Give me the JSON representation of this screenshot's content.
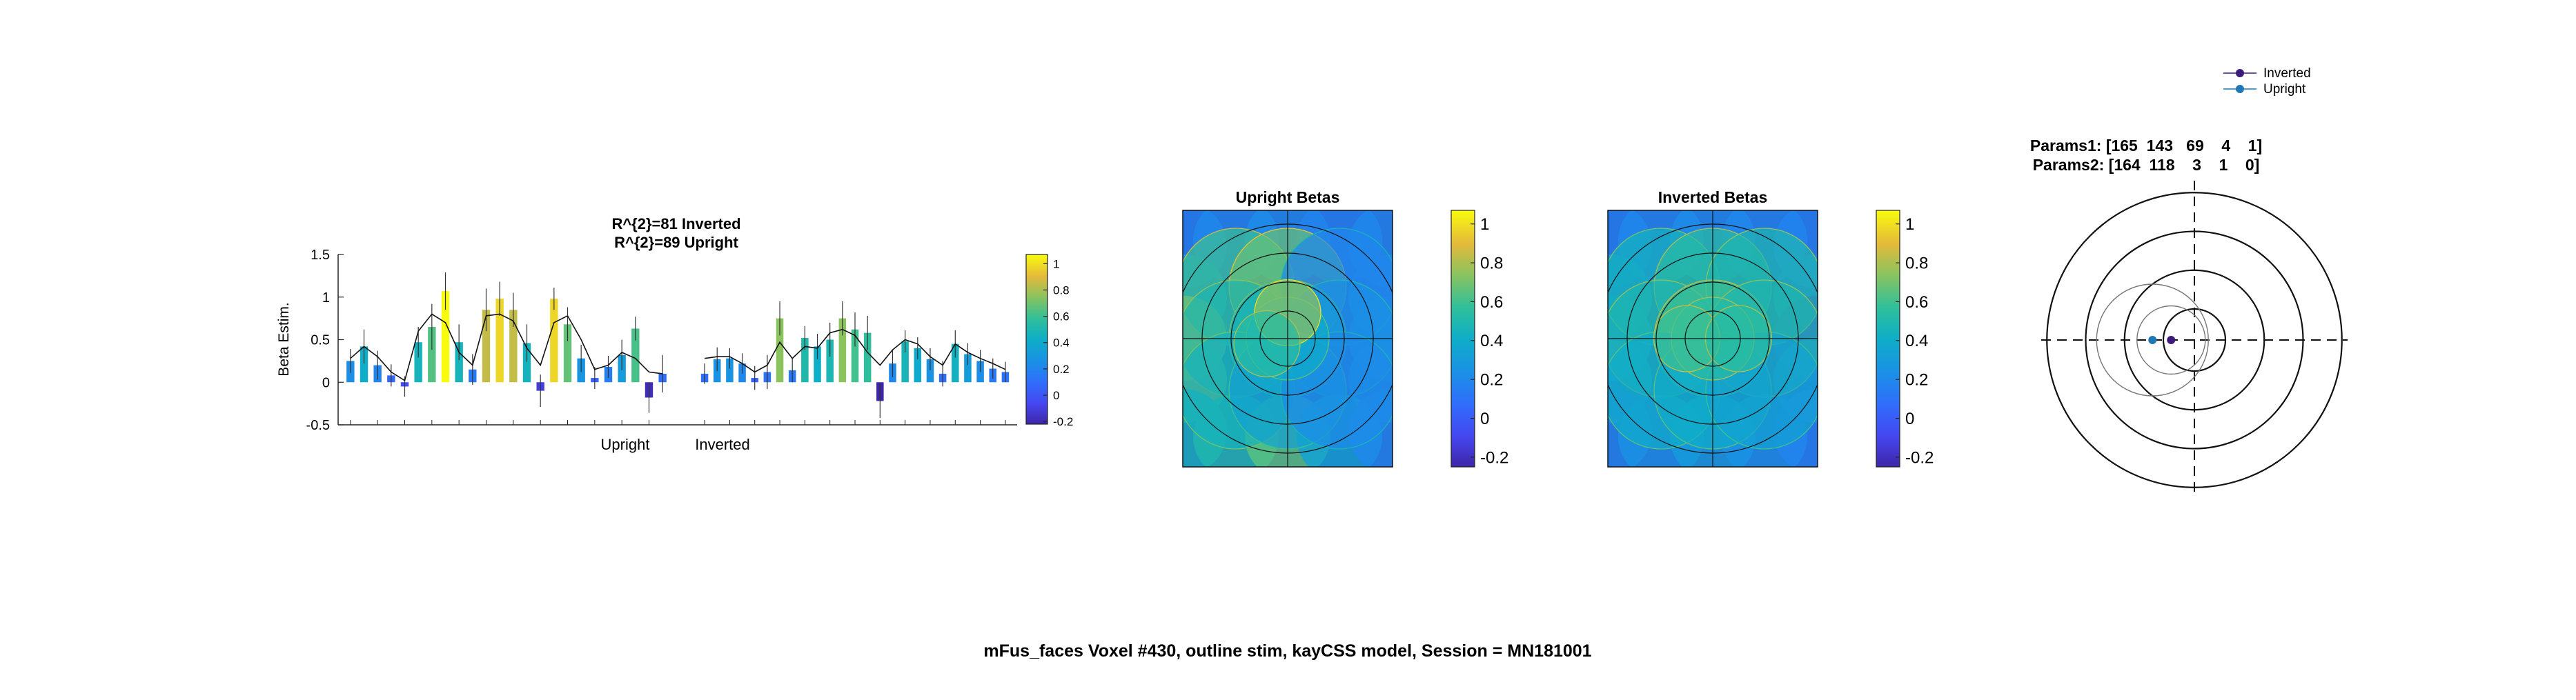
{
  "figure": {
    "footer": "mFus_faces Voxel #430, outline stim, kayCSS model, Session = MN181001"
  },
  "chart_data": [
    {
      "type": "bar",
      "title_lines": [
        "R^{2}=81 Inverted",
        "R^{2}=89 Upright"
      ],
      "ylabel": "Beta Estim.",
      "xlabel_groups": [
        "Upright",
        "Inverted"
      ],
      "ylim": [
        -0.5,
        1.5
      ],
      "yticks": [
        "1.5",
        "1",
        "0.5",
        "0",
        "-0.5"
      ],
      "ytick_values": [
        1.5,
        1,
        0.5,
        0,
        -0.5
      ],
      "colorbar_ticks": [
        "1",
        "0.8",
        "0.6",
        "0.4",
        "0.2",
        "0",
        "-0.2"
      ],
      "colorbar_values": [
        1,
        0.8,
        0.6,
        0.4,
        0.2,
        0,
        -0.2
      ],
      "colorbar_range": [
        -0.22,
        1.07
      ],
      "groups": [
        {
          "name": "Upright",
          "values": [
            0.25,
            0.42,
            0.2,
            0.08,
            -0.05,
            0.47,
            0.65,
            1.07,
            0.47,
            0.15,
            0.85,
            0.98,
            0.85,
            0.46,
            -0.1,
            0.98,
            0.68,
            0.28,
            0.05,
            0.18,
            0.32,
            0.63,
            -0.18,
            0.1
          ],
          "errors": [
            0.14,
            0.2,
            0.17,
            0.13,
            0.12,
            0.18,
            0.27,
            0.22,
            0.21,
            0.18,
            0.25,
            0.2,
            0.2,
            0.22,
            0.19,
            0.13,
            0.2,
            0.16,
            0.13,
            0.13,
            0.18,
            0.14,
            0.18,
            0.22
          ],
          "fit": [
            0.28,
            0.42,
            0.3,
            0.12,
            0.02,
            0.6,
            0.8,
            0.7,
            0.35,
            0.2,
            0.78,
            0.8,
            0.72,
            0.4,
            0.2,
            0.7,
            0.78,
            0.5,
            0.15,
            0.2,
            0.35,
            0.28,
            0.12,
            0.1
          ]
        },
        {
          "name": "Inverted",
          "values": [
            0.1,
            0.27,
            0.28,
            0.22,
            0.05,
            0.12,
            0.75,
            0.14,
            0.52,
            0.42,
            0.5,
            0.75,
            0.62,
            0.58,
            -0.22,
            0.22,
            0.48,
            0.4,
            0.27,
            0.1,
            0.45,
            0.33,
            0.25,
            0.16,
            0.12
          ],
          "errors": [
            0.12,
            0.14,
            0.12,
            0.12,
            0.14,
            0.2,
            0.2,
            0.14,
            0.14,
            0.15,
            0.2,
            0.2,
            0.2,
            0.2,
            0.2,
            0.16,
            0.13,
            0.13,
            0.13,
            0.15,
            0.16,
            0.13,
            0.13,
            0.12,
            0.12
          ],
          "fit": [
            0.28,
            0.3,
            0.3,
            0.22,
            0.12,
            0.2,
            0.47,
            0.28,
            0.42,
            0.4,
            0.58,
            0.62,
            0.55,
            0.35,
            0.2,
            0.38,
            0.5,
            0.45,
            0.3,
            0.2,
            0.45,
            0.35,
            0.28,
            0.22,
            0.15
          ]
        }
      ]
    },
    {
      "type": "heatmap",
      "title": "Upright Betas",
      "colorbar_ticks": [
        "1",
        "0.8",
        "0.6",
        "0.4",
        "0.2",
        "0",
        "-0.2"
      ],
      "colorbar_values": [
        1,
        0.8,
        0.6,
        0.4,
        0.2,
        0,
        -0.2
      ],
      "colorbar_range": [
        -0.25,
        1.07
      ],
      "background_value": -0.17,
      "grid_xy": [
        -1,
        -0.5,
        0,
        0.5,
        1
      ],
      "circles": [
        {
          "x": -0.5,
          "y": 0.5,
          "value": 0.6
        },
        {
          "x": 0,
          "y": 0.5,
          "value": 0.68
        },
        {
          "x": 0.5,
          "y": 0.5,
          "value": 0.2
        },
        {
          "x": -0.5,
          "y": 0,
          "value": 0.5
        },
        {
          "x": 0,
          "y": 0,
          "value": 0.45
        },
        {
          "x": 0.5,
          "y": 0,
          "value": 0.25
        },
        {
          "x": -0.5,
          "y": -0.5,
          "value": 0.45
        },
        {
          "x": 0,
          "y": -0.5,
          "value": 0.35
        },
        {
          "x": 0.5,
          "y": -0.5,
          "value": 0.22
        },
        {
          "x": 0,
          "y": 0,
          "value": 0.4
        },
        {
          "x": 0,
          "y": 0.25,
          "value": 0.75
        },
        {
          "x": -0.2,
          "y": -0.05,
          "value": 0.55
        }
      ],
      "edge_values": [
        {
          "x": -1,
          "y": 0.9,
          "value": 0.18
        },
        {
          "x": -0.5,
          "y": 0.95,
          "value": 0.2
        },
        {
          "x": 0,
          "y": 0.95,
          "value": 0.22
        },
        {
          "x": 0.5,
          "y": 0.95,
          "value": 0.18
        },
        {
          "x": 1,
          "y": 0.9,
          "value": 0.2
        },
        {
          "x": -1,
          "y": 0.4,
          "value": 0.3
        },
        {
          "x": 1,
          "y": 0.4,
          "value": 0.18
        },
        {
          "x": -1,
          "y": 0,
          "value": 0.85
        },
        {
          "x": 1,
          "y": 0,
          "value": 0.2
        },
        {
          "x": -1,
          "y": -0.4,
          "value": 0.75
        },
        {
          "x": 1,
          "y": -0.4,
          "value": 0.2
        },
        {
          "x": -1,
          "y": -0.9,
          "value": 0.45
        },
        {
          "x": -0.5,
          "y": -0.95,
          "value": 0.5
        },
        {
          "x": 0,
          "y": -0.95,
          "value": 0.65
        },
        {
          "x": 0.5,
          "y": -0.95,
          "value": 0.35
        },
        {
          "x": 1,
          "y": -0.9,
          "value": 0.2
        }
      ]
    },
    {
      "type": "heatmap",
      "title": "Inverted Betas",
      "colorbar_ticks": [
        "1",
        "0.8",
        "0.6",
        "0.4",
        "0.2",
        "0",
        "-0.2"
      ],
      "colorbar_values": [
        1,
        0.8,
        0.6,
        0.4,
        0.2,
        0,
        -0.2
      ],
      "colorbar_range": [
        -0.25,
        1.07
      ],
      "background_value": -0.17,
      "grid_xy": [
        -1,
        -0.5,
        0,
        0.5,
        1
      ],
      "circles": [
        {
          "x": -0.5,
          "y": 0.5,
          "value": 0.45
        },
        {
          "x": 0,
          "y": 0.5,
          "value": 0.55
        },
        {
          "x": 0.5,
          "y": 0.5,
          "value": 0.5
        },
        {
          "x": -0.5,
          "y": 0,
          "value": 0.5
        },
        {
          "x": 0,
          "y": 0,
          "value": 0.6
        },
        {
          "x": 0.5,
          "y": 0,
          "value": 0.5
        },
        {
          "x": -0.5,
          "y": -0.5,
          "value": 0.4
        },
        {
          "x": 0,
          "y": -0.5,
          "value": 0.4
        },
        {
          "x": 0.5,
          "y": -0.5,
          "value": 0.35
        },
        {
          "x": 0,
          "y": 0,
          "value": 0.55
        },
        {
          "x": -0.25,
          "y": 0,
          "value": 0.6
        },
        {
          "x": 0.25,
          "y": 0,
          "value": 0.55
        }
      ],
      "edge_values": [
        {
          "x": -1,
          "y": 0.9,
          "value": 0.18
        },
        {
          "x": -0.5,
          "y": 0.95,
          "value": 0.2
        },
        {
          "x": 0,
          "y": 0.95,
          "value": 0.22
        },
        {
          "x": 0.5,
          "y": 0.95,
          "value": 0.2
        },
        {
          "x": 1,
          "y": 0.9,
          "value": 0.18
        },
        {
          "x": -1,
          "y": 0.4,
          "value": 0.3
        },
        {
          "x": 1,
          "y": 0.4,
          "value": 0.2
        },
        {
          "x": -1,
          "y": 0,
          "value": 0.35
        },
        {
          "x": 1,
          "y": 0,
          "value": -0.15
        },
        {
          "x": -1,
          "y": -0.4,
          "value": 0.3
        },
        {
          "x": 1,
          "y": -0.4,
          "value": 0.2
        },
        {
          "x": -1,
          "y": -0.9,
          "value": 0.2
        },
        {
          "x": -0.5,
          "y": -0.95,
          "value": 0.25
        },
        {
          "x": 0,
          "y": -0.95,
          "value": 0.3
        },
        {
          "x": 0.5,
          "y": -0.95,
          "value": 0.25
        },
        {
          "x": 1,
          "y": -0.9,
          "value": 0.18
        }
      ]
    },
    {
      "type": "scatter",
      "title_lines": [
        "Params1: [165  143   69    4    1]",
        "Params2: [164  118    3    1    0]"
      ],
      "legend": [
        "Inverted",
        "Upright"
      ],
      "legend_placement": "top-right",
      "rings": [
        0.2,
        0.45,
        0.7,
        0.95
      ],
      "series": [
        {
          "name": "Inverted",
          "color": "#3b1a7a",
          "x": -0.15,
          "y": 0,
          "radius": 0.22
        },
        {
          "name": "Upright",
          "color": "#1f78b4",
          "x": -0.27,
          "y": 0,
          "radius": 0.36
        }
      ]
    }
  ]
}
